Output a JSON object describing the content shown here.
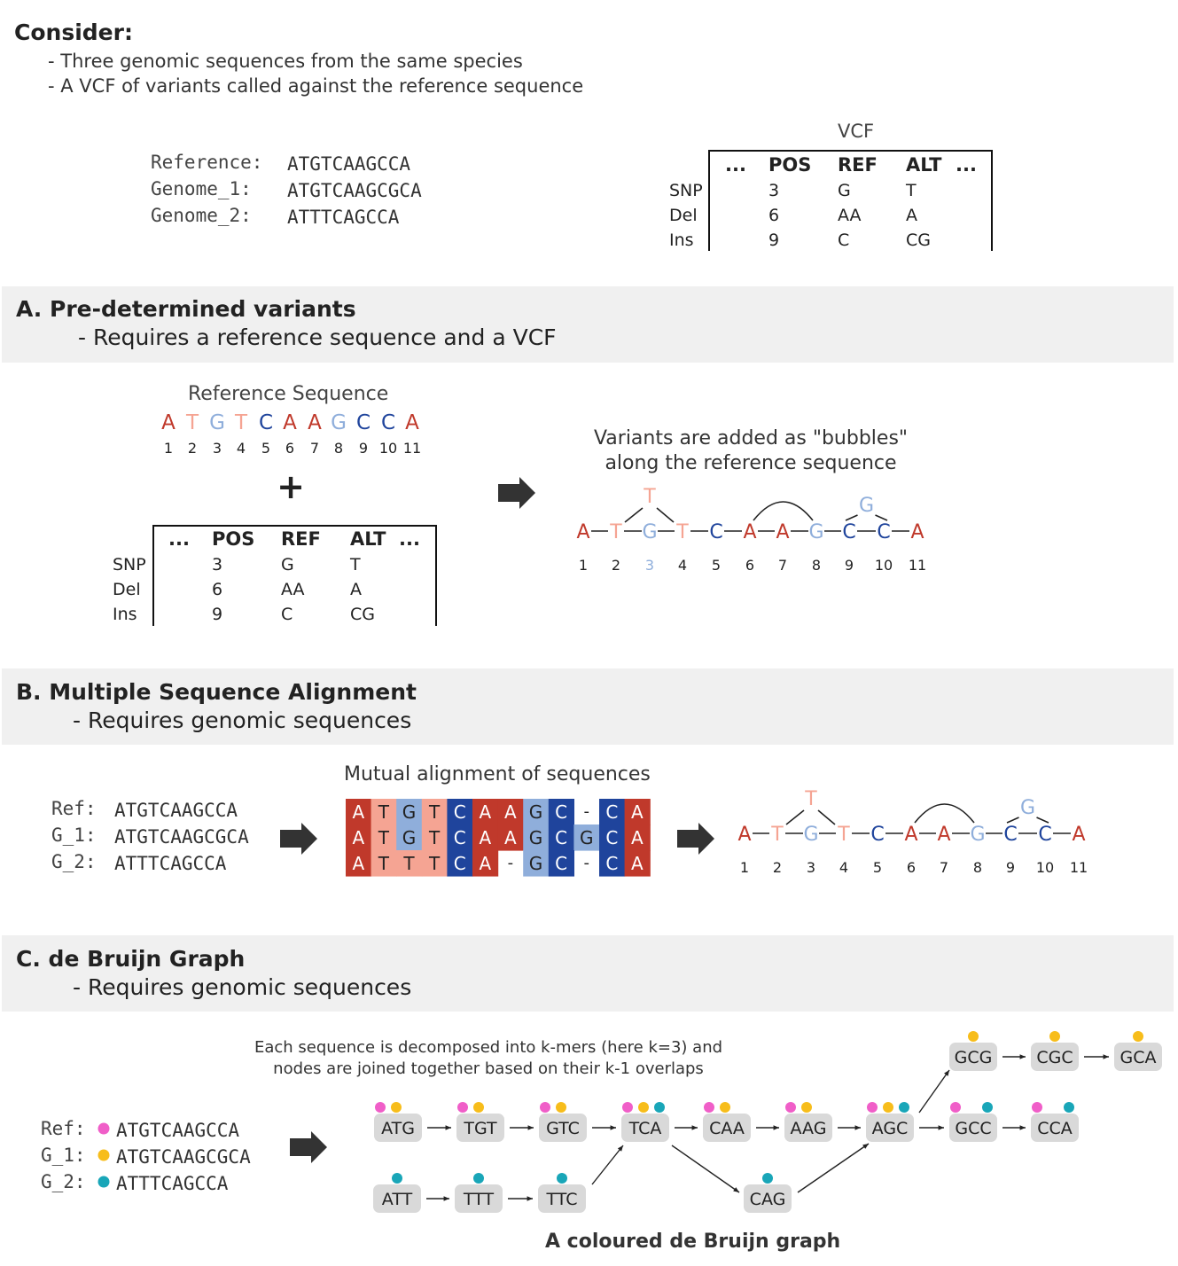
{
  "consider": {
    "title": "Consider:",
    "bullet1": "- Three genomic sequences from the same species",
    "bullet2": "- A VCF of variants called against the reference sequence"
  },
  "genomes": [
    {
      "label": "Reference:",
      "seq": "ATGTCAAGCCA"
    },
    {
      "label": "Genome_1:",
      "seq": "ATGTCAAGCGCA"
    },
    {
      "label": "Genome_2:",
      "seq": "ATTTCAGCCA"
    }
  ],
  "vcf": {
    "title": "VCF",
    "ellipsis": "...",
    "headers": [
      "POS",
      "REF",
      "ALT"
    ],
    "rows": [
      {
        "type": "SNP",
        "pos": "3",
        "ref": "G",
        "alt": "T"
      },
      {
        "type": "Del",
        "pos": "6",
        "ref": "AA",
        "alt": "A"
      },
      {
        "type": "Ins",
        "pos": "9",
        "ref": "C",
        "alt": "CG"
      }
    ]
  },
  "sectionA": {
    "title": "A. Pre-determined variants",
    "subtitle": "- Requires a reference sequence and a VCF",
    "ref_caption": "Reference Sequence",
    "ref_letters": [
      "A",
      "T",
      "G",
      "T",
      "C",
      "A",
      "A",
      "G",
      "C",
      "C",
      "A"
    ],
    "positions": [
      "1",
      "2",
      "3",
      "4",
      "5",
      "6",
      "7",
      "8",
      "9",
      "10",
      "11"
    ],
    "plus": "+",
    "bubbles_caption_line1": "Variants are added as \"bubbles\"",
    "bubbles_caption_line2": "along the reference sequence",
    "snp_alt": "T",
    "ins_alt": "G"
  },
  "sectionB": {
    "title": "B. Multiple Sequence Alignment",
    "subtitle": "- Requires genomic sequences",
    "seqs": [
      {
        "label": "Ref:",
        "seq": "ATGTCAAGCCA"
      },
      {
        "label": "G_1:",
        "seq": "ATGTCAAGCGCA"
      },
      {
        "label": "G_2:",
        "seq": "ATTTCAGCCA"
      }
    ],
    "msa_caption": "Mutual alignment of sequences",
    "msa_rows": [
      [
        "A",
        "T",
        "G",
        "T",
        "C",
        "A",
        "A",
        "G",
        "C",
        "-",
        "C",
        "A"
      ],
      [
        "A",
        "T",
        "G",
        "T",
        "C",
        "A",
        "A",
        "G",
        "C",
        "G",
        "C",
        "A"
      ],
      [
        "A",
        "T",
        "T",
        "T",
        "C",
        "A",
        "-",
        "G",
        "C",
        "-",
        "C",
        "A"
      ]
    ]
  },
  "sectionC": {
    "title": "C. de Bruijn Graph",
    "subtitle": "- Requires genomic sequences",
    "caption_line1": "Each sequence is decomposed into k-mers (here k=3) and",
    "caption_line2": "nodes are joined together based on their k-1 overlaps",
    "seqs": [
      {
        "label": "Ref:",
        "seq": "ATGTCAAGCCA"
      },
      {
        "label": "G_1:",
        "seq": "ATGTCAAGCGCA"
      },
      {
        "label": "G_2:",
        "seq": "ATTTCAGCCA"
      }
    ],
    "nodes": {
      "atg": "ATG",
      "tgt": "TGT",
      "gtc": "GTC",
      "tca": "TCA",
      "caa": "CAA",
      "aag": "AAG",
      "agc": "AGC",
      "gcc": "GCC",
      "cca": "CCA",
      "gcg": "GCG",
      "cgc": "CGC",
      "gca": "GCA",
      "att": "ATT",
      "ttt": "TTT",
      "ttc": "TTC",
      "cag": "CAG"
    },
    "graph_caption": "A coloured de Bruijn graph"
  },
  "colors": {
    "ref_dot": "#f05ec8",
    "g1_dot": "#f7bd1b",
    "g2_dot": "#19a6b8",
    "A": "#c0392b",
    "T": "#f5a493",
    "G": "#8faedb",
    "C": "#1f449c",
    "node_bg": "#d9d9d9",
    "band_bg": "#f0f0f0"
  }
}
